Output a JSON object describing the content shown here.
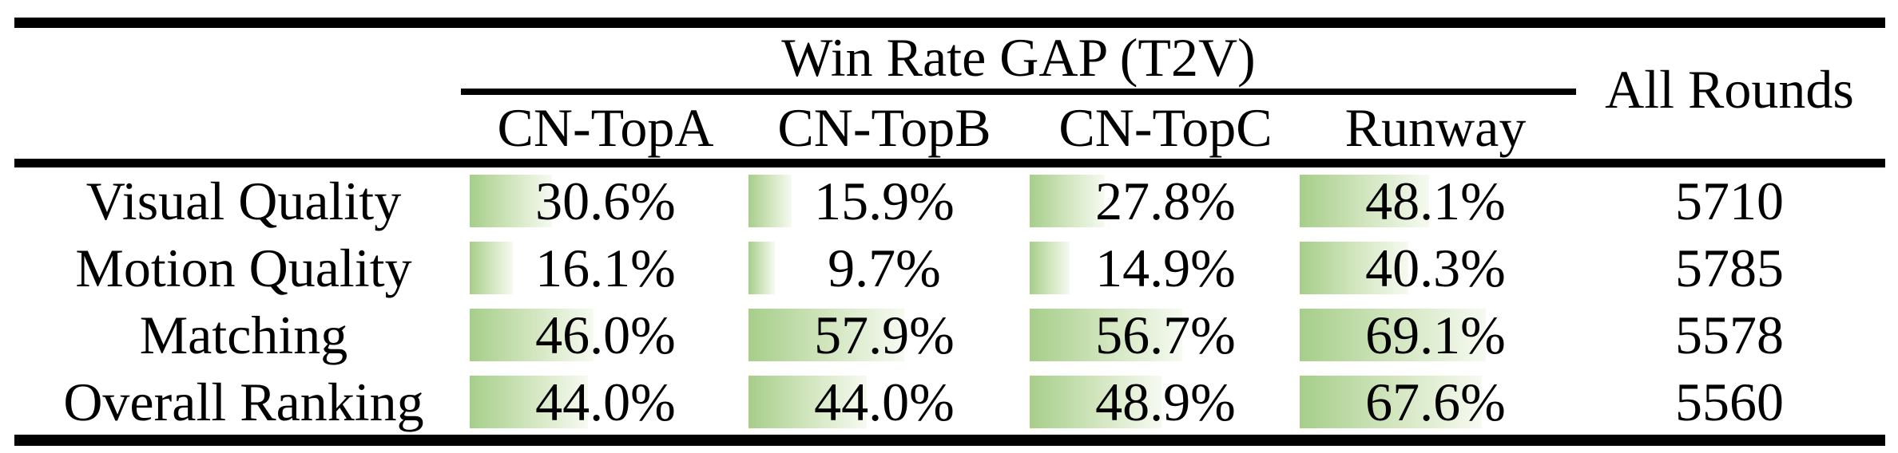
{
  "table": {
    "group_title": "Win Rate GAP (T2V)",
    "all_rounds_header": "All Rounds",
    "columns": [
      "CN-TopA",
      "CN-TopB",
      "CN-TopC",
      "Runway"
    ],
    "rows": [
      {
        "label": "Visual Quality",
        "cells": [
          {
            "label": "30.6%",
            "value": 30.6
          },
          {
            "label": "15.9%",
            "value": 15.9
          },
          {
            "label": "27.8%",
            "value": 27.8
          },
          {
            "label": "48.1%",
            "value": 48.1
          }
        ],
        "all_rounds": "5710"
      },
      {
        "label": "Motion Quality",
        "cells": [
          {
            "label": "16.1%",
            "value": 16.1
          },
          {
            "label": "9.7%",
            "value": 9.7
          },
          {
            "label": "14.9%",
            "value": 14.9
          },
          {
            "label": "40.3%",
            "value": 40.3
          }
        ],
        "all_rounds": "5785"
      },
      {
        "label": "Matching",
        "cells": [
          {
            "label": "46.0%",
            "value": 46.0
          },
          {
            "label": "57.9%",
            "value": 57.9
          },
          {
            "label": "56.7%",
            "value": 56.7
          },
          {
            "label": "69.1%",
            "value": 69.1
          }
        ],
        "all_rounds": "5578"
      },
      {
        "label": "Overall Ranking",
        "cells": [
          {
            "label": "44.0%",
            "value": 44.0
          },
          {
            "label": "44.0%",
            "value": 44.0
          },
          {
            "label": "48.9%",
            "value": 48.9
          },
          {
            "label": "67.6%",
            "value": 67.6
          }
        ],
        "all_rounds": "5560"
      }
    ]
  },
  "chart_data": {
    "type": "table",
    "title": "Win Rate GAP (T2V)",
    "columns": [
      "CN-TopA",
      "CN-TopB",
      "CN-TopC",
      "Runway",
      "All Rounds"
    ],
    "row_labels": [
      "Visual Quality",
      "Motion Quality",
      "Matching",
      "Overall Ranking"
    ],
    "series": [
      {
        "name": "Visual Quality",
        "win_rate_gap_pct": [
          30.6,
          15.9,
          27.8,
          48.1
        ],
        "all_rounds": 5710
      },
      {
        "name": "Motion Quality",
        "win_rate_gap_pct": [
          16.1,
          9.7,
          14.9,
          40.3
        ],
        "all_rounds": 5785
      },
      {
        "name": "Matching",
        "win_rate_gap_pct": [
          46.0,
          57.9,
          56.7,
          69.1
        ],
        "all_rounds": 5578
      },
      {
        "name": "Overall Ranking",
        "win_rate_gap_pct": [
          44.0,
          44.0,
          48.9,
          67.6
        ],
        "all_rounds": 5560
      }
    ],
    "bar_scale": {
      "min": 0,
      "max": 100
    },
    "bar_style": "horizontal in-cell gradient bar behind centered percentage text"
  },
  "colors": {
    "bar_green": "#a6ce8a",
    "bar_fade": "#f6faf1",
    "rule_color": "#000000",
    "text_color": "#000000",
    "background": "#ffffff"
  }
}
